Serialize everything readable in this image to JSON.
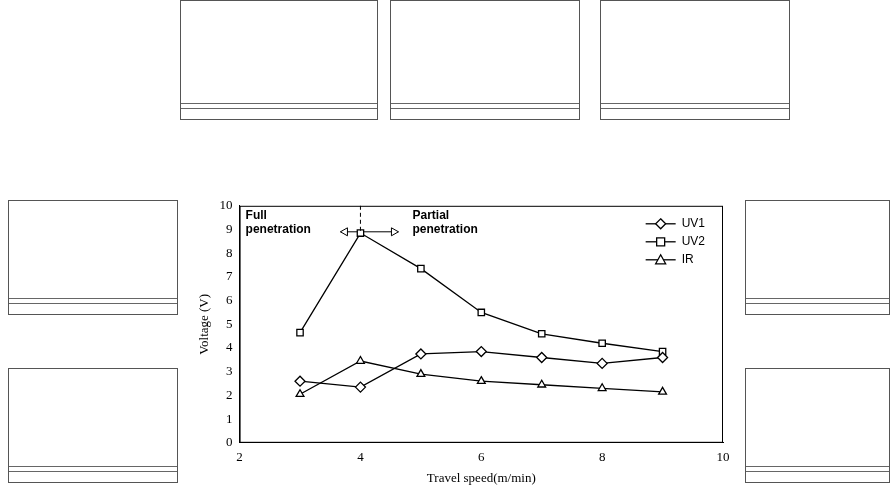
{
  "chart_data": {
    "type": "line",
    "x_label": "Travel speed(m/min)",
    "y_label": "Voltage (V)",
    "x": [
      3,
      4,
      5,
      6,
      7,
      8,
      9
    ],
    "series": [
      {
        "name": "UV1",
        "color": "#000000",
        "marker": "diamond",
        "line_style": "solid",
        "values": [
          2.6,
          2.35,
          3.75,
          3.85,
          3.6,
          3.35,
          3.6
        ]
      },
      {
        "name": "UV2",
        "color": "#000000",
        "marker": "square",
        "line_style": "solid",
        "values": [
          4.65,
          8.85,
          7.35,
          5.5,
          4.6,
          4.2,
          3.85
        ]
      },
      {
        "name": "IR",
        "color": "#000000",
        "marker": "triangle",
        "line_style": "solid",
        "values": [
          2.05,
          3.45,
          2.9,
          2.6,
          2.45,
          2.3,
          2.15
        ]
      }
    ],
    "xlim": [
      2,
      10
    ],
    "xticks": [
      2,
      4,
      6,
      8,
      10
    ],
    "ylim": [
      0,
      10
    ],
    "yticks": [
      0,
      1,
      2,
      3,
      4,
      5,
      6,
      7,
      8,
      9,
      10
    ],
    "grid": false,
    "legend": "upper right",
    "penetration": {
      "boundary_x": 4,
      "left_text": "Full penetration",
      "right_text": "Partial penetration"
    }
  }
}
